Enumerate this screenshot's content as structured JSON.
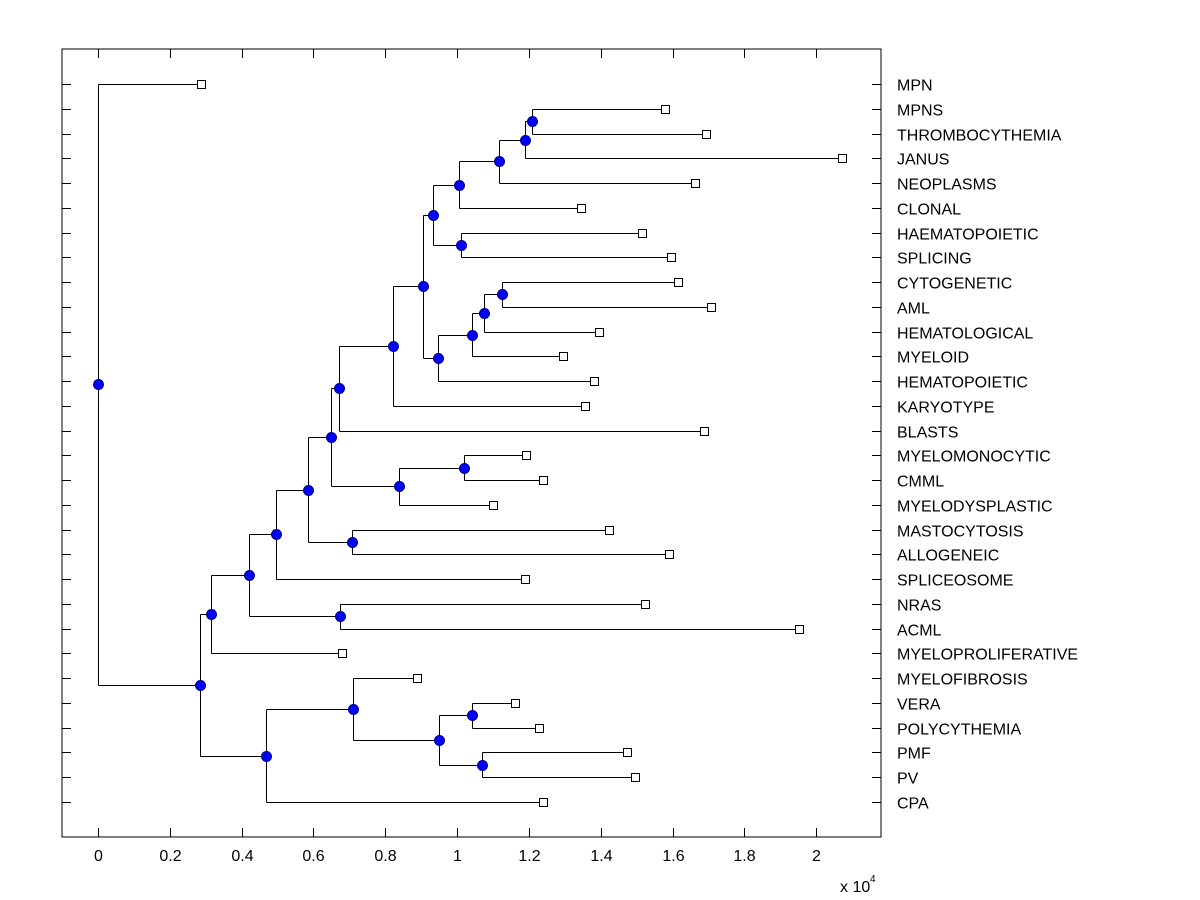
{
  "chart_data": {
    "type": "dendrogram",
    "title": "",
    "xlabel": "",
    "ylabel": "",
    "x_multiplier_label": "x 10",
    "x_multiplier_exponent": "4",
    "xlim": [
      -0.1,
      2.18
    ],
    "x_ticks": [
      0,
      0.2,
      0.4,
      0.6,
      0.8,
      1,
      1.2,
      1.4,
      1.6,
      1.8,
      2
    ],
    "x_tick_labels": [
      "0",
      "0.2",
      "0.4",
      "0.6",
      "0.8",
      "1",
      "1.2",
      "1.4",
      "1.6",
      "1.8",
      "2"
    ],
    "grid": false,
    "colors": {
      "node_fill": "#0000ff",
      "node_stroke": "#000080",
      "line": "#000000",
      "leaf_fill": "#ffffff"
    },
    "leaves": [
      {
        "label": "MPN",
        "x": 0.287
      },
      {
        "label": "MPNS",
        "x": 1.58
      },
      {
        "label": "THROMBOCYTHEMIA",
        "x": 1.694
      },
      {
        "label": "JANUS",
        "x": 2.072
      },
      {
        "label": "NEOPLASMS",
        "x": 1.663
      },
      {
        "label": "CLONAL",
        "x": 1.346
      },
      {
        "label": "HAEMATOPOIETIC",
        "x": 1.516
      },
      {
        "label": "SPLICING",
        "x": 1.594
      },
      {
        "label": "CYTOGENETIC",
        "x": 1.616
      },
      {
        "label": "AML",
        "x": 1.708
      },
      {
        "label": "HEMATOLOGICAL",
        "x": 1.394
      },
      {
        "label": "MYELOID",
        "x": 1.296
      },
      {
        "label": "HEMATOPOIETIC",
        "x": 1.382
      },
      {
        "label": "KARYOTYPE",
        "x": 1.357
      },
      {
        "label": "BLASTS",
        "x": 1.686
      },
      {
        "label": "MYELOMONOCYTIC",
        "x": 1.193
      },
      {
        "label": "CMML",
        "x": 1.238
      },
      {
        "label": "MYELODYSPLASTIC",
        "x": 1.099
      },
      {
        "label": "MASTOCYTOSIS",
        "x": 1.424
      },
      {
        "label": "ALLOGENEIC",
        "x": 1.591
      },
      {
        "label": "SPLICEOSOME",
        "x": 1.188
      },
      {
        "label": "NRAS",
        "x": 1.524
      },
      {
        "label": "ACML",
        "x": 1.953
      },
      {
        "label": "MYELOPROLIFERATIVE",
        "x": 0.679
      },
      {
        "label": "MYELOFIBROSIS",
        "x": 0.887
      },
      {
        "label": "VERA",
        "x": 1.16
      },
      {
        "label": "POLYCYTHEMIA",
        "x": 1.227
      },
      {
        "label": "PMF",
        "x": 1.474
      },
      {
        "label": "PV",
        "x": 1.494
      },
      {
        "label": "CPA",
        "x": 1.238
      }
    ],
    "tree": {
      "x": 0,
      "children": [
        {
          "leaf": 0
        },
        {
          "x": 0.284,
          "children": [
            {
              "x": 0.315,
              "children": [
                {
                  "x": 0.42,
                  "children": [
                    {
                      "x": 0.497,
                      "children": [
                        {
                          "x": 0.585,
                          "children": [
                            {
                              "x": 0.65,
                              "children": [
                                {
                                  "x": 0.671,
                                  "children": [
                                    {
                                      "x": 0.822,
                                      "children": [
                                        {
                                          "x": 0.905,
                                          "children": [
                                            {
                                              "x": 0.932,
                                              "children": [
                                                {
                                                  "x": 1.004,
                                                  "children": [
                                                    {
                                                      "x": 1.116,
                                                      "children": [
                                                        {
                                                          "x": 1.19,
                                                          "children": [
                                                            {
                                                              "x": 1.209,
                                                              "children": [
                                                                {
                                                                  "leaf": 1
                                                                },
                                                                {
                                                                  "leaf": 2
                                                                }
                                                              ]
                                                            },
                                                            {
                                                              "leaf": 3
                                                            }
                                                          ]
                                                        },
                                                        {
                                                          "leaf": 4
                                                        }
                                                      ]
                                                    },
                                                    {
                                                      "leaf": 5
                                                    }
                                                  ]
                                                },
                                                {
                                                  "x": 1.011,
                                                  "children": [
                                                    {
                                                      "leaf": 6
                                                    },
                                                    {
                                                      "leaf": 7
                                                    }
                                                  ]
                                                }
                                              ]
                                            },
                                            {
                                              "x": 0.947,
                                              "children": [
                                                {
                                                  "x": 1.04,
                                                  "children": [
                                                    {
                                                      "x": 1.075,
                                                      "children": [
                                                        {
                                                          "x": 1.124,
                                                          "children": [
                                                            {
                                                              "leaf": 8
                                                            },
                                                            {
                                                              "leaf": 9
                                                            }
                                                          ]
                                                        },
                                                        {
                                                          "leaf": 10
                                                        }
                                                      ]
                                                    },
                                                    {
                                                      "leaf": 11
                                                    }
                                                  ]
                                                },
                                                {
                                                  "leaf": 12
                                                }
                                              ]
                                            }
                                          ]
                                        },
                                        {
                                          "leaf": 13
                                        }
                                      ]
                                    },
                                    {
                                      "leaf": 14
                                    }
                                  ]
                                },
                                {
                                  "x": 0.839,
                                  "children": [
                                    {
                                      "x": 1.02,
                                      "children": [
                                        {
                                          "leaf": 15
                                        },
                                        {
                                          "leaf": 16
                                        }
                                      ]
                                    },
                                    {
                                      "leaf": 17
                                    }
                                  ]
                                }
                              ]
                            },
                            {
                              "x": 0.706,
                              "children": [
                                {
                                  "leaf": 18
                                },
                                {
                                  "leaf": 19
                                }
                              ]
                            }
                          ]
                        },
                        {
                          "leaf": 20
                        }
                      ]
                    },
                    {
                      "x": 0.673,
                      "children": [
                        {
                          "leaf": 21
                        },
                        {
                          "leaf": 22
                        }
                      ]
                    }
                  ]
                },
                {
                  "leaf": 23
                }
              ]
            },
            {
              "x": 0.467,
              "children": [
                {
                  "x": 0.71,
                  "children": [
                    {
                      "leaf": 24
                    },
                    {
                      "x": 0.949,
                      "children": [
                        {
                          "x": 1.04,
                          "children": [
                            {
                              "leaf": 25
                            },
                            {
                              "leaf": 26
                            }
                          ]
                        },
                        {
                          "x": 1.068,
                          "children": [
                            {
                              "leaf": 27
                            },
                            {
                              "leaf": 28
                            }
                          ]
                        }
                      ]
                    }
                  ]
                },
                {
                  "leaf": 29
                }
              ]
            }
          ]
        }
      ]
    }
  }
}
